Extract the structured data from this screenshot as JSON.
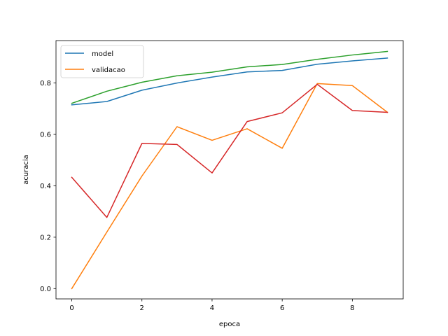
{
  "chart_data": {
    "type": "line",
    "title": "",
    "xlabel": "epoca",
    "ylabel": "acuracia",
    "xlim": [
      -0.45,
      9.45
    ],
    "ylim": [
      -0.04,
      0.965
    ],
    "xticks": [
      0,
      2,
      4,
      6,
      8
    ],
    "yticks": [
      0.0,
      0.2,
      0.4,
      0.6,
      0.8
    ],
    "ytick_labels": [
      "0.0",
      "0.2",
      "0.4",
      "0.6",
      "0.8"
    ],
    "grid": false,
    "legend": "top-left",
    "x": [
      0,
      1,
      2,
      3,
      4,
      5,
      6,
      7,
      8,
      9
    ],
    "series": [
      {
        "name": "model",
        "color": "#1f77b4",
        "in_legend": true,
        "values": [
          0.715,
          0.728,
          0.772,
          0.8,
          0.823,
          0.843,
          0.849,
          0.873,
          0.886,
          0.897
        ]
      },
      {
        "name": "validacao",
        "color": "#ff7f0e",
        "in_legend": true,
        "values": [
          0.0,
          0.22,
          0.438,
          0.63,
          0.577,
          0.622,
          0.546,
          0.798,
          0.79,
          0.686
        ]
      },
      {
        "name": "",
        "color": "#2ca02c",
        "in_legend": false,
        "values": [
          0.721,
          0.768,
          0.803,
          0.828,
          0.842,
          0.863,
          0.872,
          0.892,
          0.909,
          0.923
        ]
      },
      {
        "name": "",
        "color": "#d62728",
        "in_legend": false,
        "values": [
          0.433,
          0.277,
          0.565,
          0.561,
          0.45,
          0.65,
          0.684,
          0.795,
          0.693,
          0.686
        ]
      }
    ]
  }
}
